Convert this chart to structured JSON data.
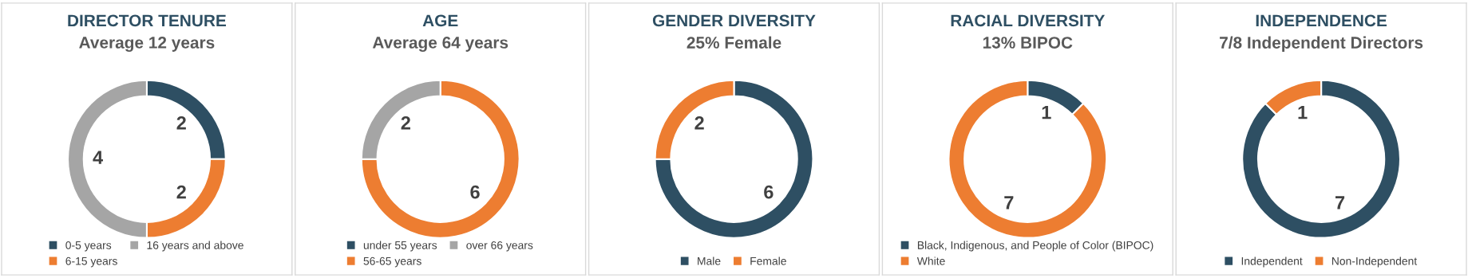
{
  "chart_data": [
    {
      "type": "donut",
      "title": "DIRECTOR TENURE",
      "subtitle": "Average 12 years",
      "categories": [
        "0-5 years",
        "6-15 years",
        "16 years and above"
      ],
      "values": [
        2,
        2,
        4
      ],
      "colors": [
        "#2e4f63",
        "#ed7d31",
        "#a5a5a5"
      ],
      "data_labels": true,
      "legend": "bottom"
    },
    {
      "type": "donut",
      "title": "AGE",
      "subtitle": "Average 64 years",
      "categories": [
        "under 55 years",
        "56-65 years",
        "over 66 years"
      ],
      "values": [
        0,
        6,
        2
      ],
      "colors": [
        "#2e4f63",
        "#ed7d31",
        "#a5a5a5"
      ],
      "value_labels": [
        null,
        "6",
        "2"
      ],
      "legend": "bottom"
    },
    {
      "type": "donut",
      "title": "GENDER DIVERSITY",
      "subtitle": "25% Female",
      "categories": [
        "Male",
        "Female"
      ],
      "values": [
        6,
        2
      ],
      "colors": [
        "#2e4f63",
        "#ed7d31"
      ],
      "data_labels": true,
      "legend": "bottom"
    },
    {
      "type": "donut",
      "title": "RACIAL DIVERSITY",
      "subtitle": "13% BIPOC",
      "categories": [
        "Black, Indigenous, and People of Color (BIPOC)",
        "White"
      ],
      "values": [
        1,
        7
      ],
      "colors": [
        "#2e4f63",
        "#ed7d31"
      ],
      "data_labels": true,
      "legend": "bottom"
    },
    {
      "type": "donut",
      "title": "INDEPENDENCE",
      "subtitle": "7/8 Independent Directors",
      "categories": [
        "Independent",
        "Non-Independent"
      ],
      "values": [
        7,
        1
      ],
      "colors": [
        "#2e4f63",
        "#ed7d31"
      ],
      "data_labels": true,
      "legend": "bottom"
    }
  ]
}
